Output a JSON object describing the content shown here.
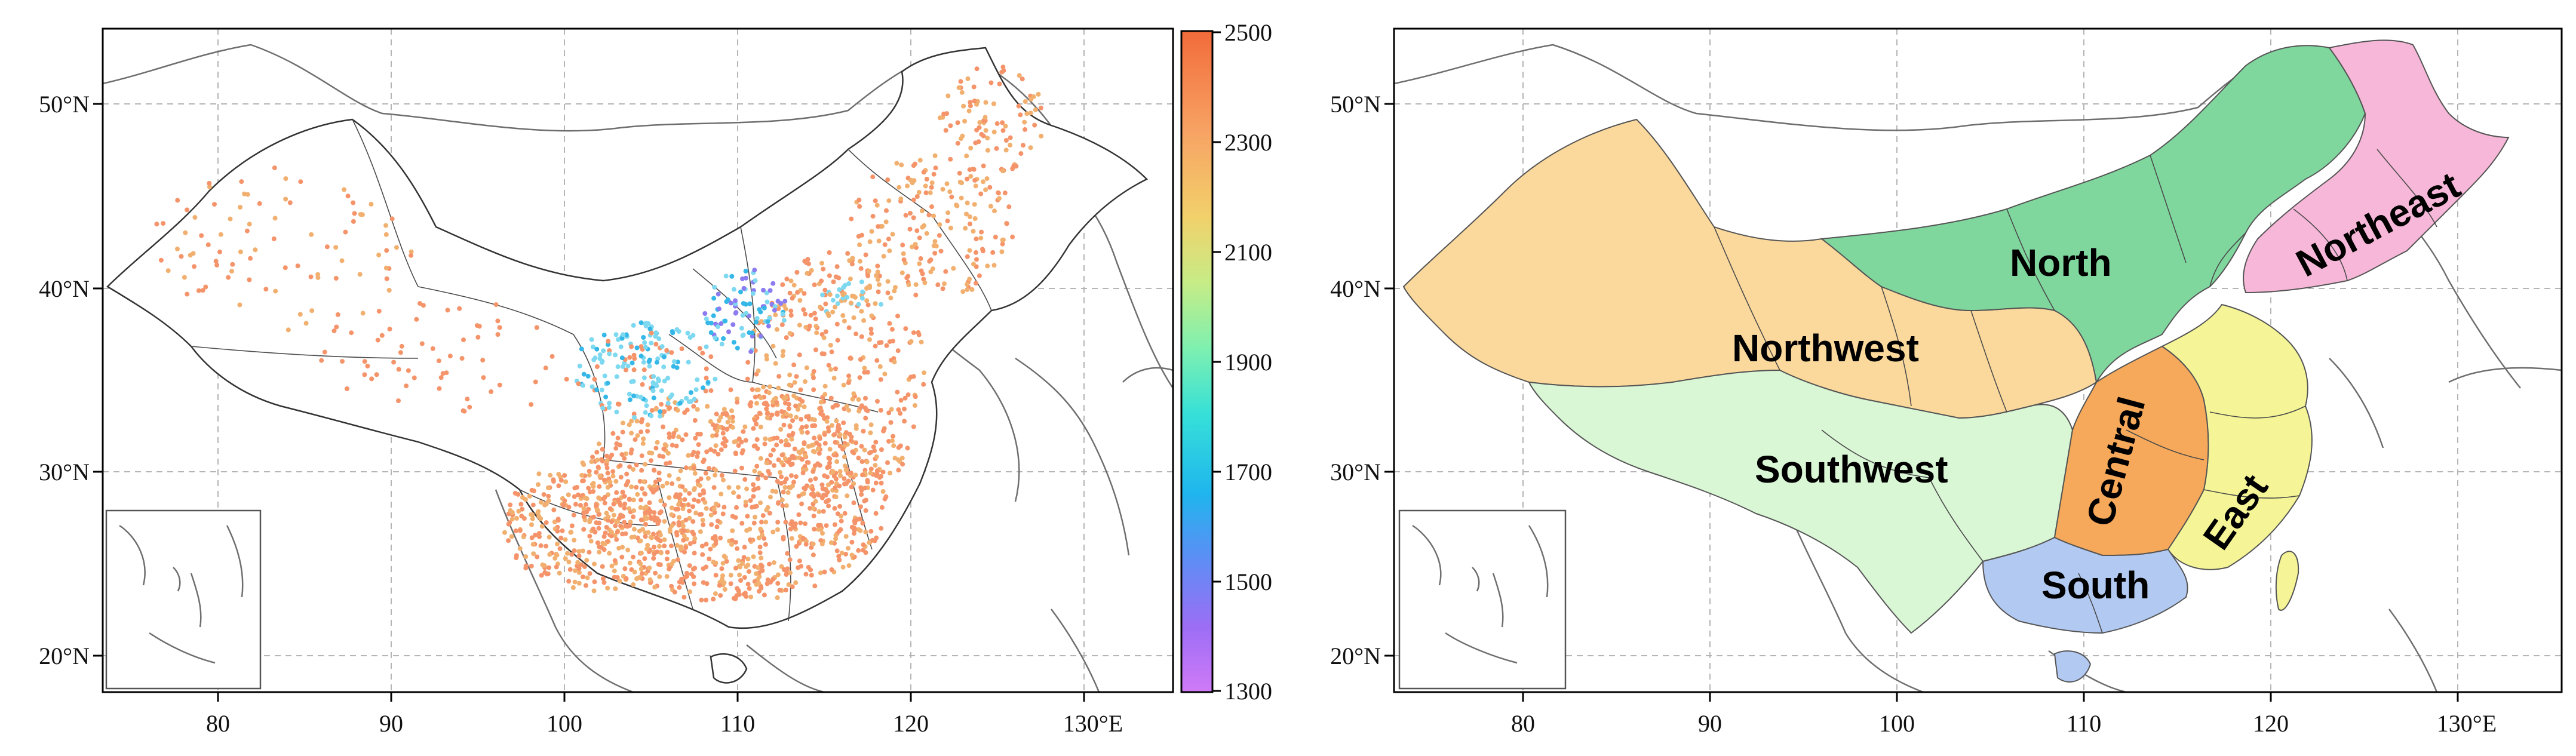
{
  "maps": [
    {
      "id": "station-map",
      "x_ticks": [
        "80",
        "90",
        "100",
        "110",
        "120",
        "130°E"
      ],
      "y_ticks": [
        "20°N",
        "30°N",
        "40°N",
        "50°N"
      ]
    },
    {
      "id": "region-map",
      "x_ticks": [
        "80",
        "90",
        "100",
        "110",
        "120",
        "130°E"
      ],
      "y_ticks": [
        "20°N",
        "30°N",
        "40°N",
        "50°N"
      ]
    }
  ],
  "colorbar": {
    "ticks": [
      "2500",
      "2300",
      "2100",
      "1900",
      "1700",
      "1500",
      "1300"
    ],
    "colors": [
      "#f26b3a",
      "#f7a264",
      "#f2d06a",
      "#c7ec86",
      "#7ef0b0",
      "#36e0d8",
      "#1fb5ee",
      "#5e8df5",
      "#9b6ef5",
      "#d07af7"
    ]
  },
  "regions": [
    {
      "name": "Northwest",
      "color": "#fbd99c"
    },
    {
      "name": "North",
      "color": "#7fd79e"
    },
    {
      "name": "Northeast",
      "color": "#f7b7d8"
    },
    {
      "name": "Southwest",
      "color": "#d9f6d5"
    },
    {
      "name": "Central",
      "color": "#f6a95a"
    },
    {
      "name": "East",
      "color": "#f5f597"
    },
    {
      "name": "South",
      "color": "#b2c9f2"
    }
  ],
  "station_colors": {
    "high": "#f5946a",
    "mid": "#f2b070",
    "low1": "#7ed9f0",
    "low2": "#35b8e8",
    "low3": "#8b7cf0"
  }
}
